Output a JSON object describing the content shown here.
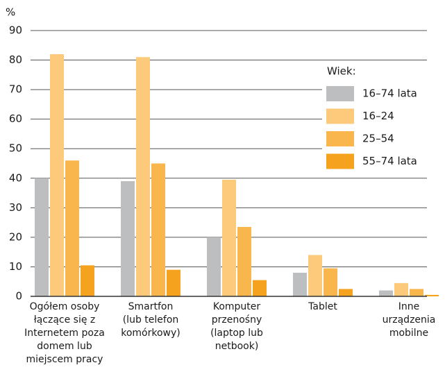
{
  "chart_data": {
    "type": "bar",
    "y_label": "%",
    "legend_title": "Wiek:",
    "legend": "upper right",
    "grid": true,
    "categories": [
      "Ogółem osoby\nłączące się z\nInternetem poza\ndomem lub\nmiejscem pracy",
      "Smartfon\n(lub telefon\nkomórkowy)",
      "Komputer\nprzenośny\n(laptop lub\nnetbook)",
      "Tablet",
      "Inne\nurządzenia\nmobilne"
    ],
    "series": [
      {
        "name": "16–74 lata",
        "color": "#bdbec0",
        "values": [
          40,
          39,
          20,
          8,
          2
        ]
      },
      {
        "name": "16–24",
        "color": "#fdca7c",
        "values": [
          82,
          81,
          39.5,
          14,
          4.5
        ]
      },
      {
        "name": "25–54",
        "color": "#f9b64c",
        "values": [
          46,
          45,
          23.5,
          9.5,
          2.5
        ]
      },
      {
        "name": "55–74 lata",
        "color": "#f5a31e",
        "values": [
          10.5,
          9,
          5.5,
          2.5,
          0.5
        ]
      }
    ],
    "ylim": [
      0,
      90
    ],
    "yticks": [
      0,
      10,
      20,
      30,
      40,
      50,
      60,
      70,
      80,
      90
    ]
  }
}
